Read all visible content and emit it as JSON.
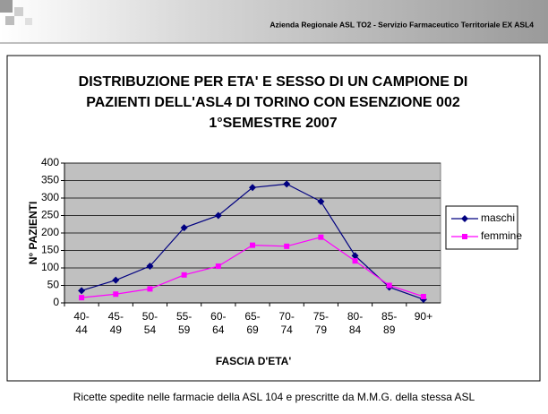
{
  "header": {
    "text": "Azienda Regionale ASL TO2 - Servizio Farmaceutico Territoriale EX ASL4"
  },
  "chart_data": {
    "type": "line",
    "title": [
      "DISTRIBUZIONE PER ETA' E SESSO DI UN CAMPIONE DI",
      "PAZIENTI DELL'ASL4 DI TORINO CON ESENZIONE 002",
      "1°SEMESTRE 2007"
    ],
    "xlabel": "FASCIA D'ETA'",
    "ylabel": "N° PAZIENTI",
    "categories": [
      "40-44",
      "45-49",
      "50-54",
      "55-59",
      "60-64",
      "65-69",
      "70-74",
      "75-79",
      "80-84",
      "85-89",
      "90+"
    ],
    "series": [
      {
        "name": "maschi",
        "color": "#000080",
        "marker": "diamond",
        "values": [
          35,
          65,
          105,
          215,
          250,
          330,
          340,
          290,
          135,
          45,
          10
        ]
      },
      {
        "name": "femmine",
        "color": "#ff00ff",
        "marker": "square",
        "values": [
          15,
          25,
          40,
          80,
          105,
          165,
          162,
          188,
          120,
          50,
          18
        ]
      }
    ],
    "ylim": [
      0,
      400
    ],
    "yticks": [
      0,
      50,
      100,
      150,
      200,
      250,
      300,
      350,
      400
    ],
    "grid": true,
    "legend": "right"
  },
  "caption": "Ricette spedite nelle farmacie della ASL 104 e prescritte da M.M.G. della stessa ASL"
}
